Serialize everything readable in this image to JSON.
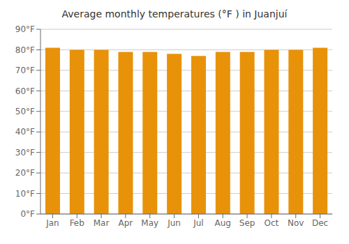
{
  "chart_data": {
    "type": "bar",
    "title": "Average monthly temperatures (°F ) in Juanjuí",
    "categories": [
      "Jan",
      "Feb",
      "Mar",
      "Apr",
      "May",
      "Jun",
      "Jul",
      "Aug",
      "Sep",
      "Oct",
      "Nov",
      "Dec"
    ],
    "values": [
      81,
      80,
      80,
      79,
      79,
      78,
      77,
      79,
      79,
      80,
      80,
      81
    ],
    "color": "#E8920A",
    "ylim": [
      0,
      90
    ],
    "yticks": [
      {
        "value": 0,
        "label": "0°F"
      },
      {
        "value": 10,
        "label": "10°F"
      },
      {
        "value": 20,
        "label": "20°F"
      },
      {
        "value": 30,
        "label": "30°F"
      },
      {
        "value": 40,
        "label": "40°F"
      },
      {
        "value": 50,
        "label": "50°F"
      },
      {
        "value": 60,
        "label": "60°F"
      },
      {
        "value": 70,
        "label": "70°F"
      },
      {
        "value": 80,
        "label": "80°F"
      },
      {
        "value": 90,
        "label": "90°F"
      }
    ],
    "grid": true
  }
}
